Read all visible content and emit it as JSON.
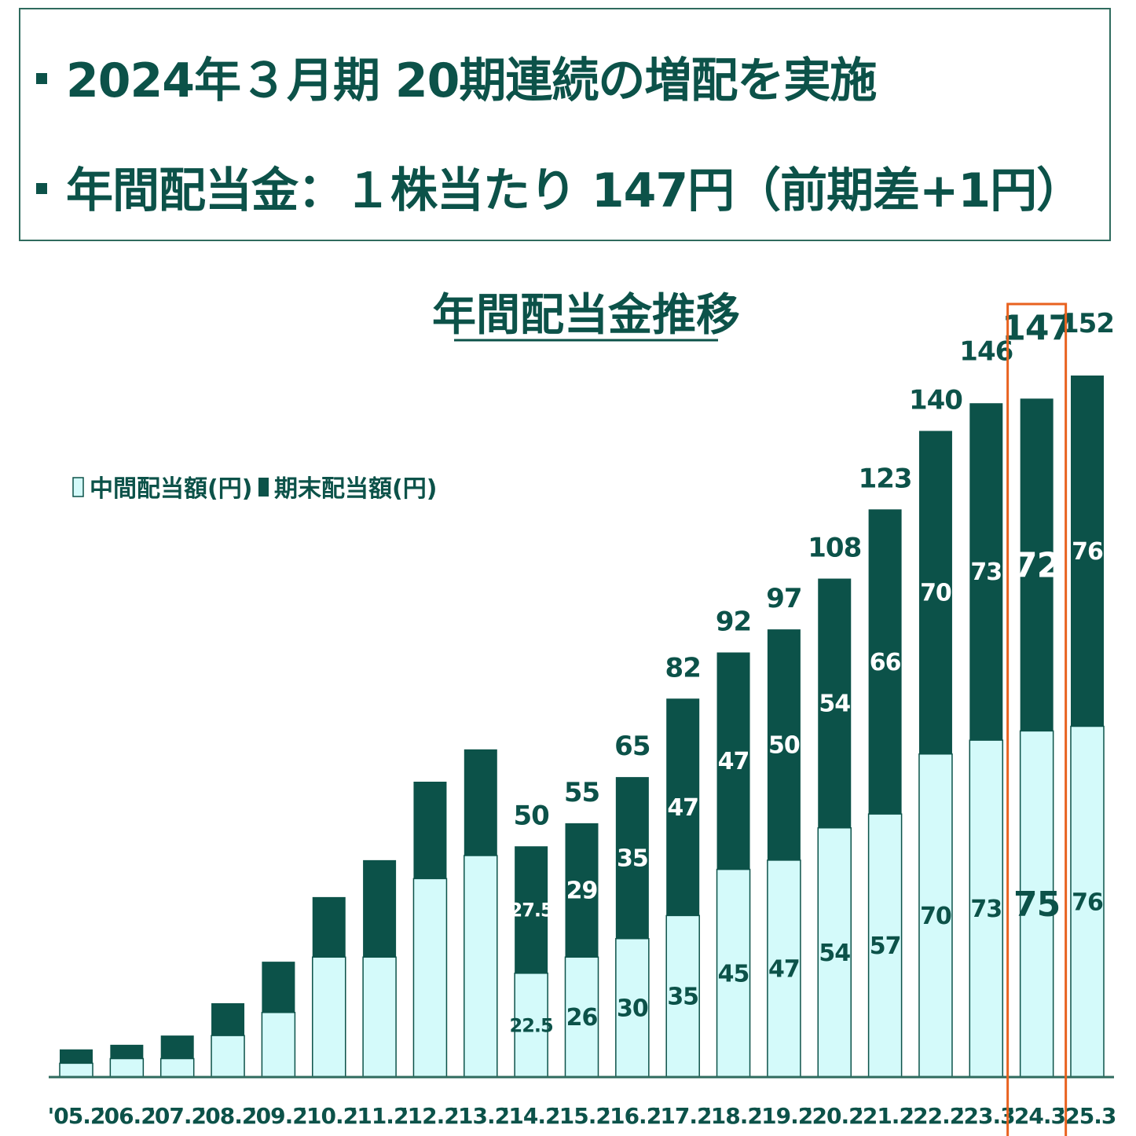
{
  "headline": {
    "line1": "2024年３月期 20期連続の増配を実施",
    "line2": "年間配当金：１株当たり 147円（前期差+1円）"
  },
  "chart_data": {
    "type": "bar",
    "stacked": true,
    "title": "年間配当金推移",
    "categories": [
      "'05.2",
      "'06.2",
      "'07.2",
      "'08.2",
      "'09.2",
      "'10.2",
      "'11.2",
      "'12.2",
      "'13.2",
      "'14.2",
      "'15.2",
      "'16.2",
      "'17.2",
      "'18.2",
      "'19.2",
      "'20.2",
      "'21.2",
      "'22.2",
      "'23.3",
      "'24.3",
      "'25.3"
    ],
    "series": [
      {
        "name": "中間配当額(円)",
        "color": "#d4fafa",
        "values": [
          3,
          4,
          4,
          9,
          14,
          26,
          26,
          43,
          48,
          22.5,
          26,
          30,
          35,
          45,
          47,
          54,
          57,
          70,
          73,
          75,
          76
        ],
        "labels": [
          "",
          "",
          "",
          "",
          "",
          "",
          "",
          "",
          "",
          "22.5",
          "26",
          "30",
          "35",
          "45",
          "47",
          "54",
          "57",
          "70",
          "73",
          "75",
          "76"
        ]
      },
      {
        "name": "期末配当額(円)",
        "color": "#0c5249",
        "values": [
          3,
          3,
          5,
          7,
          11,
          13,
          21,
          21,
          23,
          27.5,
          29,
          35,
          47,
          47,
          50,
          54,
          66,
          70,
          73,
          72,
          76
        ],
        "labels": [
          "",
          "",
          "",
          "",
          "",
          "",
          "",
          "",
          "",
          "27.5",
          "29",
          "35",
          "47",
          "47",
          "50",
          "54",
          "66",
          "70",
          "73",
          "72",
          "76"
        ]
      }
    ],
    "totals": [
      6,
      7,
      9,
      16,
      25,
      39,
      47,
      64,
      71,
      50,
      55,
      65,
      82,
      92,
      97,
      108,
      123,
      140,
      146,
      147,
      152
    ],
    "total_labels": [
      "",
      "",
      "",
      "",
      "",
      "",
      "",
      "",
      "",
      "50",
      "55",
      "65",
      "82",
      "92",
      "97",
      "108",
      "123",
      "140",
      "146",
      "147",
      "152"
    ],
    "highlight_category": "'24.3",
    "highlight_color": "#e8621f",
    "legend_position": "top-left",
    "grid": false,
    "ylim": [
      0,
      152
    ]
  }
}
